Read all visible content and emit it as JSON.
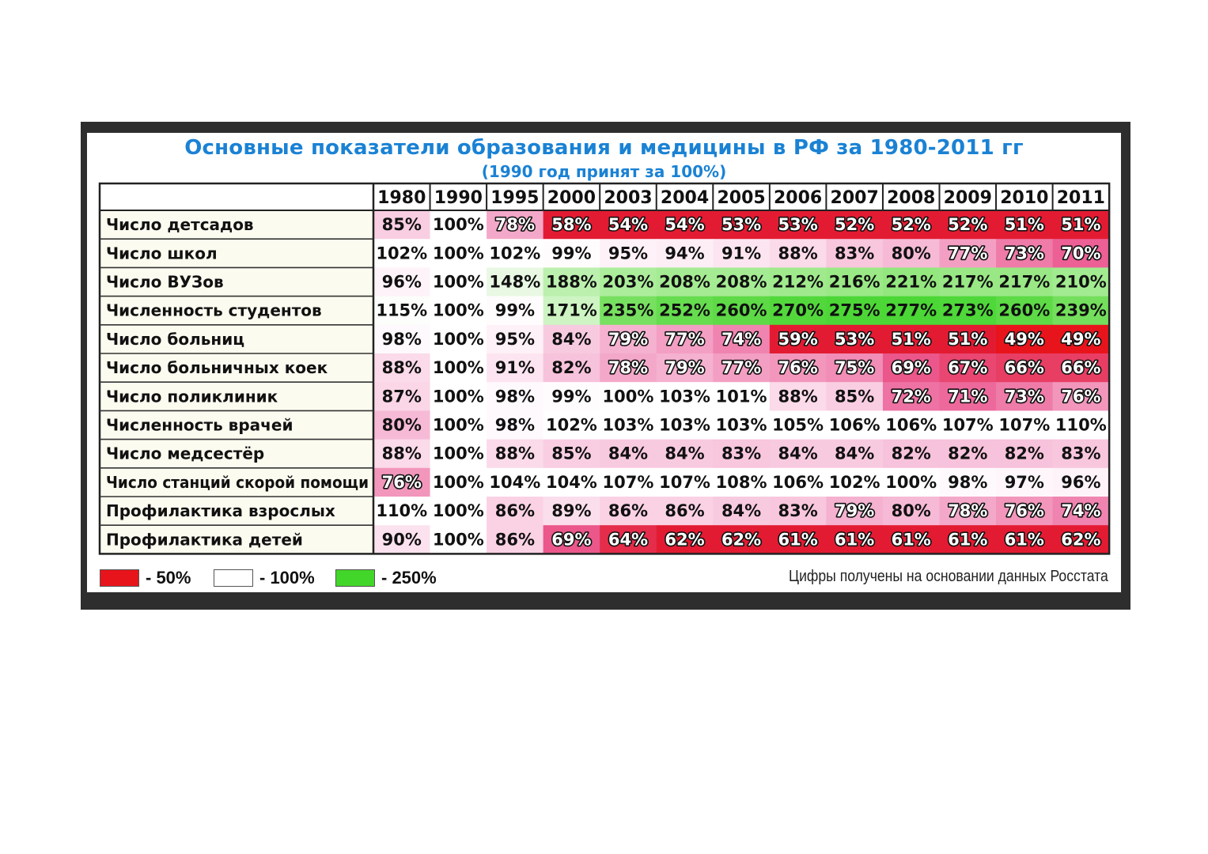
{
  "chart_data": {
    "type": "table",
    "title": "Основные показатели образования и медицины в РФ за 1980-2011 гг",
    "subtitle": "(1990 год принят за 100%)",
    "years": [
      "1980",
      "1990",
      "1995",
      "2000",
      "2003",
      "2004",
      "2005",
      "2006",
      "2007",
      "2008",
      "2009",
      "2010",
      "2011"
    ],
    "rows": [
      {
        "label": "Число детсадов",
        "values": [
          "85%",
          "100%",
          "78%",
          "58%",
          "54%",
          "54%",
          "53%",
          "53%",
          "52%",
          "52%",
          "52%",
          "51%",
          "51%"
        ]
      },
      {
        "label": "Число школ",
        "values": [
          "102%",
          "100%",
          "102%",
          "99%",
          "95%",
          "94%",
          "91%",
          "88%",
          "83%",
          "80%",
          "77%",
          "73%",
          "70%"
        ]
      },
      {
        "label": "Число ВУЗов",
        "values": [
          "96%",
          "100%",
          "148%",
          "188%",
          "203%",
          "208%",
          "208%",
          "212%",
          "216%",
          "221%",
          "217%",
          "217%",
          "210%"
        ]
      },
      {
        "label": "Численность студентов",
        "values": [
          "115%",
          "100%",
          "99%",
          "171%",
          "235%",
          "252%",
          "260%",
          "270%",
          "275%",
          "277%",
          "273%",
          "260%",
          "239%"
        ]
      },
      {
        "label": "Число больниц",
        "values": [
          "98%",
          "100%",
          "95%",
          "84%",
          "79%",
          "77%",
          "74%",
          "59%",
          "53%",
          "51%",
          "51%",
          "49%",
          "49%"
        ]
      },
      {
        "label": "Число больничных коек",
        "values": [
          "88%",
          "100%",
          "91%",
          "82%",
          "78%",
          "79%",
          "77%",
          "76%",
          "75%",
          "69%",
          "67%",
          "66%",
          "66%"
        ]
      },
      {
        "label": "Число поликлиник",
        "values": [
          "87%",
          "100%",
          "98%",
          "99%",
          "100%",
          "103%",
          "101%",
          "88%",
          "85%",
          "72%",
          "71%",
          "73%",
          "76%"
        ]
      },
      {
        "label": "Численность врачей",
        "values": [
          "80%",
          "100%",
          "98%",
          "102%",
          "103%",
          "103%",
          "103%",
          "105%",
          "106%",
          "106%",
          "107%",
          "107%",
          "110%"
        ]
      },
      {
        "label": "Число медсестёр",
        "values": [
          "88%",
          "100%",
          "88%",
          "85%",
          "84%",
          "84%",
          "83%",
          "84%",
          "84%",
          "82%",
          "82%",
          "82%",
          "83%"
        ]
      },
      {
        "label": "Число станций скорой помощи",
        "values": [
          "76%",
          "100%",
          "104%",
          "104%",
          "107%",
          "107%",
          "108%",
          "106%",
          "102%",
          "100%",
          "98%",
          "97%",
          "96%"
        ]
      },
      {
        "label": "Профилактика взрослых",
        "values": [
          "110%",
          "100%",
          "86%",
          "89%",
          "86%",
          "86%",
          "84%",
          "83%",
          "79%",
          "80%",
          "78%",
          "76%",
          "74%"
        ]
      },
      {
        "label": "Профилактика детей",
        "values": [
          "90%",
          "100%",
          "86%",
          "69%",
          "64%",
          "62%",
          "62%",
          "61%",
          "61%",
          "61%",
          "61%",
          "61%",
          "62%"
        ]
      }
    ],
    "legend": [
      {
        "label": "- 50%",
        "color": "#e8141c"
      },
      {
        "label": "- 100%",
        "color": "#ffffff"
      },
      {
        "label": "- 250%",
        "color": "#43d62a"
      }
    ],
    "source": "Цифры получены на основании данных Росстата"
  }
}
